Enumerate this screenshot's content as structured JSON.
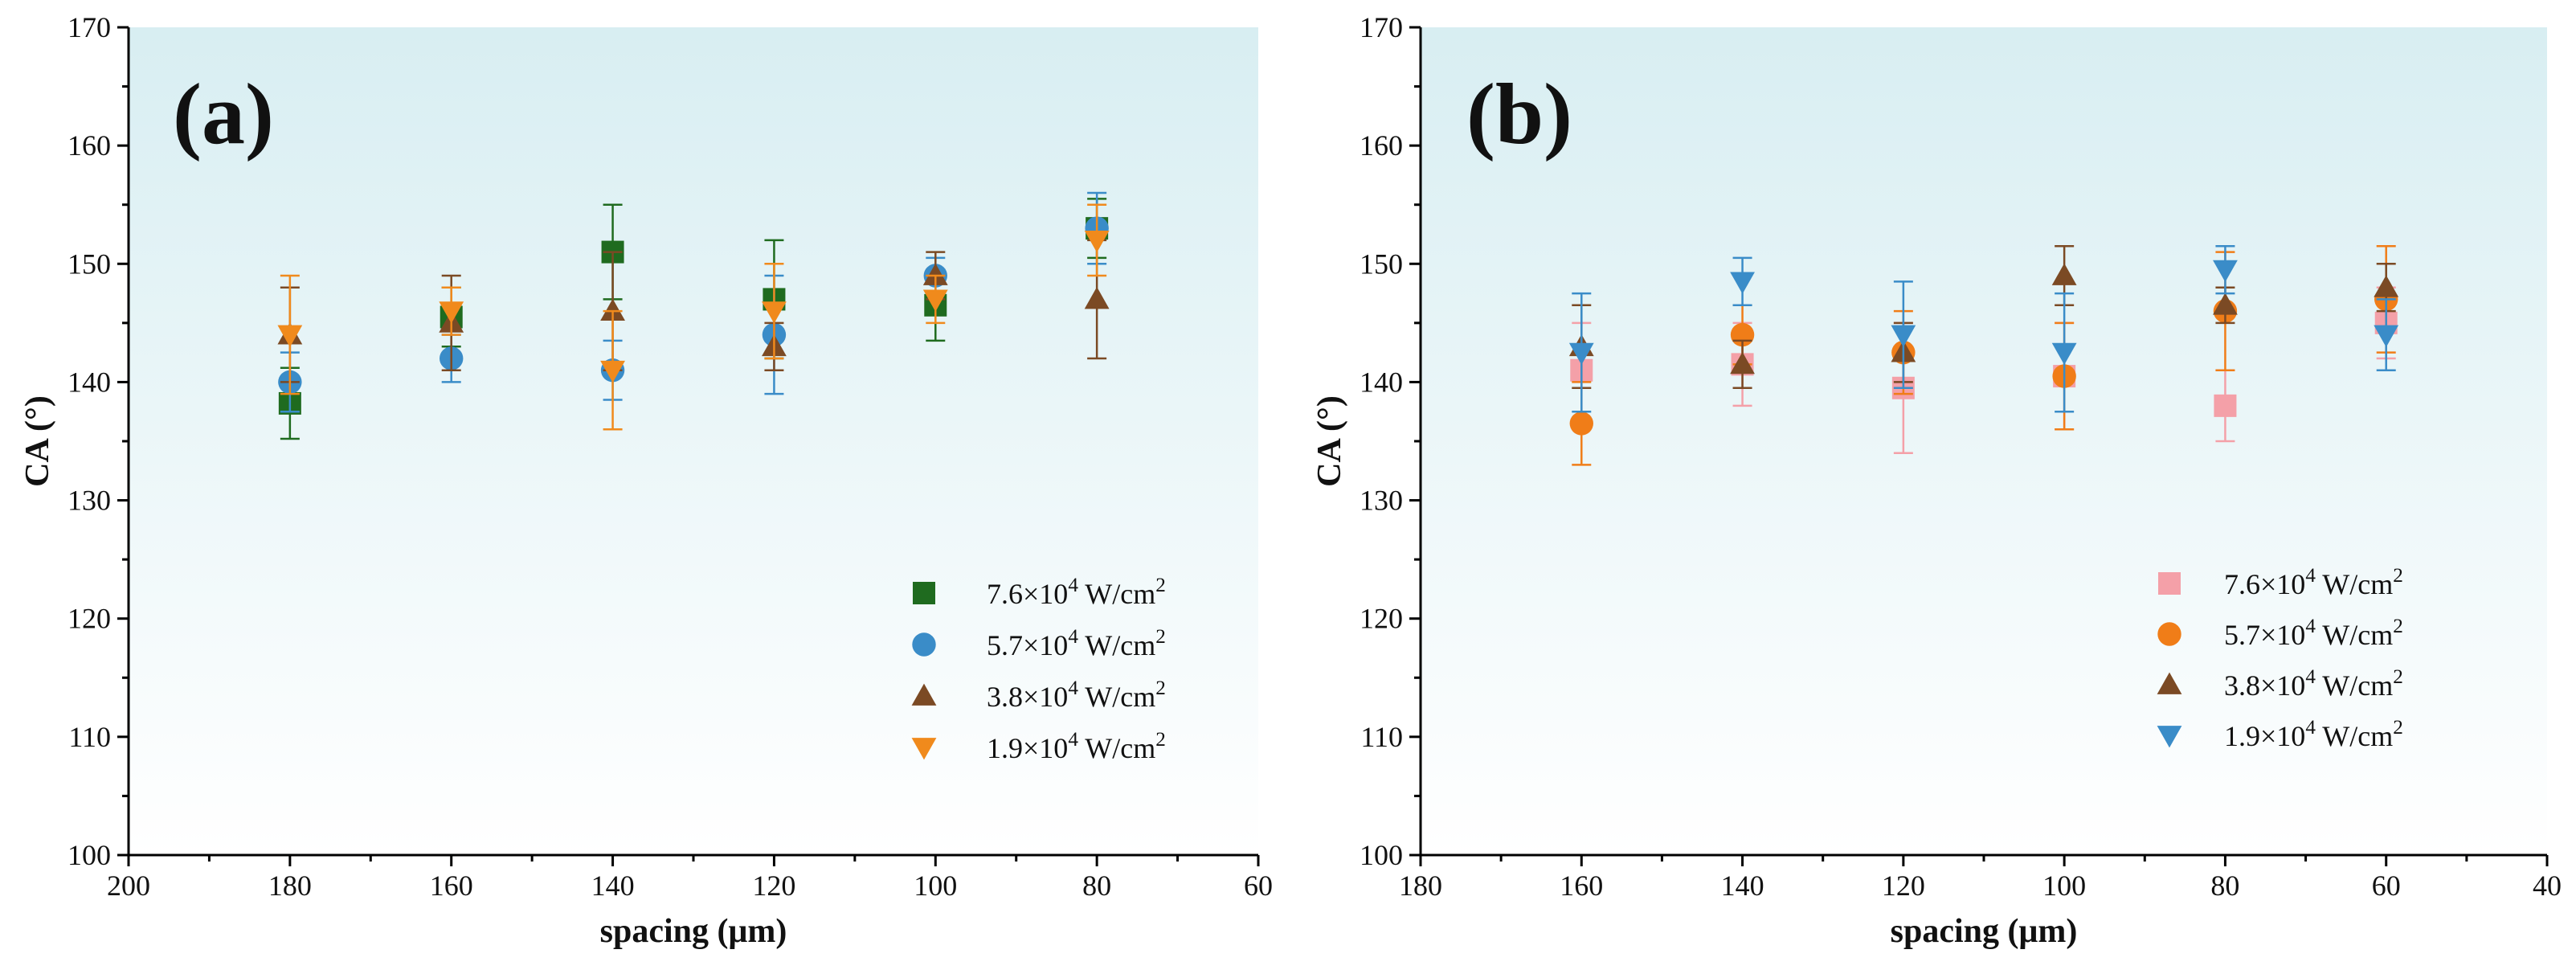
{
  "chart_data": [
    {
      "type": "scatter",
      "panel_label": "(a)",
      "xlabel": "spacing (μm)",
      "ylabel": "CA (°)",
      "xlim": [
        200,
        60
      ],
      "ylim": [
        100,
        170
      ],
      "x_ticks": [
        200,
        180,
        160,
        140,
        120,
        100,
        80,
        60
      ],
      "y_ticks": [
        100,
        110,
        120,
        130,
        140,
        150,
        160,
        170
      ],
      "x_tick_labels": [
        "200",
        "180",
        "160",
        "140",
        "120",
        "100",
        "80",
        "60"
      ],
      "y_tick_labels": [
        "100",
        "110",
        "120",
        "130",
        "140",
        "150",
        "160",
        "170"
      ],
      "legend_position": "lower-right",
      "series": [
        {
          "name": "7.6×10⁴ W/cm²",
          "marker": "square",
          "color": "#1f6b1f",
          "x": [
            180,
            160,
            140,
            120,
            100,
            80
          ],
          "y": [
            138.2,
            145.5,
            151.0,
            147.0,
            146.5,
            153.0
          ],
          "err": [
            3.0,
            2.5,
            4.0,
            5.0,
            3.0,
            2.5
          ]
        },
        {
          "name": "5.7×10⁴ W/cm²",
          "marker": "circle",
          "color": "#3a8cc8",
          "x": [
            180,
            160,
            140,
            120,
            100,
            80
          ],
          "y": [
            140.0,
            142.0,
            141.0,
            144.0,
            149.0,
            153.0
          ],
          "err": [
            2.5,
            2.0,
            2.5,
            5.0,
            1.5,
            3.0
          ]
        },
        {
          "name": "3.8×10⁴ W/cm²",
          "marker": "triangle-up",
          "color": "#7b4a24",
          "x": [
            180,
            160,
            140,
            120,
            100,
            80
          ],
          "y": [
            144.0,
            145.0,
            146.0,
            143.0,
            149.0,
            147.0
          ],
          "err": [
            4.0,
            4.0,
            5.0,
            2.0,
            2.0,
            5.0
          ]
        },
        {
          "name": "1.9×10⁴ W/cm²",
          "marker": "triangle-down",
          "color": "#f08a1c",
          "x": [
            180,
            160,
            140,
            120,
            100,
            80
          ],
          "y": [
            144.0,
            146.0,
            141.0,
            146.0,
            147.0,
            152.0
          ],
          "err": [
            5.0,
            2.0,
            5.0,
            4.0,
            2.0,
            3.0
          ]
        }
      ]
    },
    {
      "type": "scatter",
      "panel_label": "(b)",
      "xlabel": "spacing (μm)",
      "ylabel": "CA (°)",
      "xlim": [
        180,
        40
      ],
      "ylim": [
        100,
        170
      ],
      "x_ticks": [
        180,
        160,
        140,
        120,
        100,
        80,
        60,
        40
      ],
      "y_ticks": [
        100,
        110,
        120,
        130,
        140,
        150,
        160,
        170
      ],
      "x_tick_labels": [
        "180",
        "160",
        "140",
        "120",
        "100",
        "80",
        "60",
        "40"
      ],
      "y_tick_labels": [
        "100",
        "110",
        "120",
        "130",
        "140",
        "150",
        "160",
        "170"
      ],
      "legend_position": "lower-right",
      "series": [
        {
          "name": "7.6×10⁴ W/cm²",
          "marker": "square",
          "color": "#f4a0a8",
          "x": [
            160,
            140,
            120,
            100,
            80,
            60
          ],
          "y": [
            141.0,
            141.5,
            139.5,
            140.5,
            138.0,
            145.0
          ],
          "err": [
            4.0,
            3.5,
            5.5,
            4.5,
            3.0,
            3.0
          ]
        },
        {
          "name": "5.7×10⁴ W/cm²",
          "marker": "circle",
          "color": "#f07d18",
          "x": [
            160,
            140,
            120,
            100,
            80,
            60
          ],
          "y": [
            136.5,
            144.0,
            142.5,
            140.5,
            146.0,
            147.0
          ],
          "err": [
            3.5,
            2.5,
            3.5,
            4.5,
            5.0,
            4.5
          ]
        },
        {
          "name": "3.8×10⁴ W/cm²",
          "marker": "triangle-up",
          "color": "#7b4a24",
          "x": [
            160,
            140,
            120,
            100,
            80,
            60
          ],
          "y": [
            143.0,
            141.5,
            142.5,
            149.0,
            146.5,
            148.0
          ],
          "err": [
            3.5,
            2.0,
            2.5,
            2.5,
            1.5,
            2.0
          ]
        },
        {
          "name": "1.9×10⁴ W/cm²",
          "marker": "triangle-down",
          "color": "#3a8cc8",
          "x": [
            160,
            140,
            120,
            100,
            80,
            60
          ],
          "y": [
            142.5,
            148.5,
            144.0,
            142.5,
            149.5,
            144.0
          ],
          "err": [
            5.0,
            2.0,
            4.5,
            5.0,
            2.0,
            3.0
          ]
        }
      ]
    }
  ]
}
